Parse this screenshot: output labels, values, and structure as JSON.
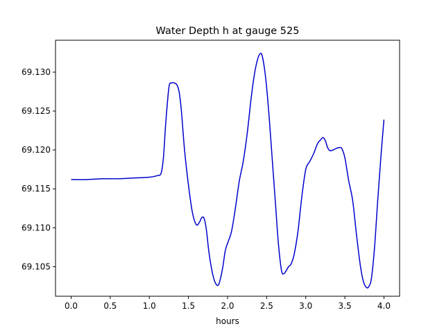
{
  "chart_data": {
    "type": "line",
    "title": "Water Depth h at gauge 525",
    "xlabel": "hours",
    "ylabel": "",
    "xlim": [
      -0.2,
      4.2
    ],
    "ylim": [
      69.1012,
      69.1341
    ],
    "xticks": [
      0.0,
      0.5,
      1.0,
      1.5,
      2.0,
      2.5,
      3.0,
      3.5,
      4.0
    ],
    "xtick_labels": [
      "0.0",
      "0.5",
      "1.0",
      "1.5",
      "2.0",
      "2.5",
      "3.0",
      "3.5",
      "4.0"
    ],
    "yticks": [
      69.105,
      69.11,
      69.115,
      69.12,
      69.125,
      69.13
    ],
    "ytick_labels": [
      "69.105",
      "69.110",
      "69.115",
      "69.120",
      "69.125",
      "69.130"
    ],
    "grid": false,
    "line_color": "#0000cc",
    "series": [
      {
        "x": [
          0.0,
          0.2,
          0.4,
          0.6,
          0.8,
          1.0,
          1.1,
          1.15,
          1.18,
          1.21,
          1.25,
          1.28,
          1.32,
          1.35,
          1.38,
          1.41,
          1.45,
          1.5,
          1.55,
          1.6,
          1.64,
          1.67,
          1.7,
          1.73,
          1.76,
          1.8,
          1.84,
          1.88,
          1.91,
          1.94,
          1.97,
          2.0,
          2.05,
          2.1,
          2.15,
          2.2,
          2.25,
          2.3,
          2.34,
          2.38,
          2.42,
          2.45,
          2.49,
          2.53,
          2.57,
          2.61,
          2.65,
          2.69,
          2.72,
          2.75,
          2.78,
          2.81,
          2.85,
          2.9,
          2.95,
          3.0,
          3.05,
          3.1,
          3.15,
          3.19,
          3.22,
          3.25,
          3.28,
          3.31,
          3.35,
          3.39,
          3.43,
          3.46,
          3.5,
          3.55,
          3.6,
          3.65,
          3.7,
          3.74,
          3.78,
          3.81,
          3.84,
          3.88,
          3.92,
          3.96,
          4.0
        ],
        "y": [
          69.1162,
          69.1162,
          69.1163,
          69.1163,
          69.1164,
          69.1165,
          69.1167,
          69.117,
          69.119,
          69.1235,
          69.128,
          69.1286,
          69.1286,
          69.1284,
          69.1275,
          69.125,
          69.12,
          69.1155,
          69.112,
          69.1104,
          69.1107,
          69.1113,
          69.1112,
          69.1097,
          69.107,
          69.1045,
          69.103,
          69.1026,
          69.1035,
          69.105,
          69.107,
          69.108,
          69.1095,
          69.1125,
          69.116,
          69.1185,
          69.122,
          69.1265,
          69.1295,
          69.1315,
          69.1324,
          69.1318,
          69.129,
          69.1245,
          69.119,
          69.1135,
          69.108,
          69.1045,
          69.1041,
          69.1045,
          69.105,
          69.1053,
          69.1065,
          69.1095,
          69.114,
          69.1175,
          69.1185,
          69.1195,
          69.1208,
          69.1213,
          69.1216,
          69.1212,
          69.1203,
          69.1199,
          69.12,
          69.1202,
          69.1203,
          69.1202,
          69.119,
          69.116,
          69.1135,
          69.109,
          69.105,
          69.103,
          69.1023,
          69.1025,
          69.1035,
          69.1075,
          69.1135,
          69.119,
          69.1239
        ]
      }
    ]
  }
}
